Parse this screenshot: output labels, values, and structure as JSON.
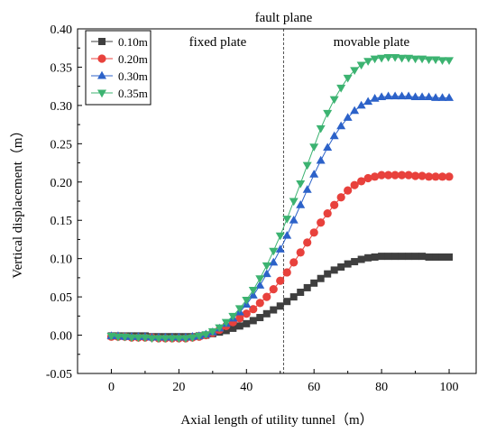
{
  "chart_data": {
    "type": "scatter",
    "xlabel": "Axial length of utility tunnel（m）",
    "ylabel": "Vertical displacement（m）",
    "xlim": [
      -10,
      108
    ],
    "ylim": [
      -0.05,
      0.4
    ],
    "xticks": [
      0,
      20,
      40,
      60,
      80,
      100
    ],
    "yticks": [
      -0.05,
      0.0,
      0.05,
      0.1,
      0.15,
      0.2,
      0.25,
      0.3,
      0.35,
      0.4
    ],
    "xtick_labels": [
      "0",
      "20",
      "40",
      "60",
      "80",
      "100"
    ],
    "ytick_labels": [
      "-0.05",
      "0.00",
      "0.05",
      "0.10",
      "0.15",
      "0.20",
      "0.25",
      "0.30",
      "0.35",
      "0.40"
    ],
    "legend_position": "top-left",
    "annotations": {
      "fault_plane": {
        "text": "fault plane",
        "x": 51
      },
      "left_region": "fixed plate",
      "right_region": "movable plate"
    },
    "series": [
      {
        "name": "0.10m",
        "color": "#3f3f3f",
        "marker": "square",
        "x": [
          0,
          2,
          4,
          6,
          8,
          10,
          12,
          14,
          16,
          18,
          20,
          22,
          24,
          26,
          28,
          30,
          32,
          34,
          36,
          38,
          40,
          42,
          44,
          46,
          48,
          50,
          52,
          54,
          56,
          58,
          60,
          62,
          64,
          66,
          68,
          70,
          72,
          74,
          76,
          78,
          80,
          82,
          84,
          86,
          88,
          90,
          92,
          94,
          96,
          98,
          100
        ],
        "values": [
          -0.001,
          -0.001,
          -0.001,
          -0.001,
          -0.001,
          -0.001,
          -0.002,
          -0.002,
          -0.002,
          -0.002,
          -0.002,
          -0.002,
          -0.002,
          -0.001,
          0.0,
          0.002,
          0.004,
          0.006,
          0.009,
          0.012,
          0.015,
          0.019,
          0.023,
          0.028,
          0.033,
          0.038,
          0.044,
          0.05,
          0.056,
          0.062,
          0.068,
          0.074,
          0.08,
          0.085,
          0.089,
          0.093,
          0.096,
          0.099,
          0.101,
          0.102,
          0.103,
          0.103,
          0.103,
          0.103,
          0.103,
          0.103,
          0.103,
          0.102,
          0.102,
          0.102,
          0.102
        ]
      },
      {
        "name": "0.20m",
        "color": "#e8413c",
        "marker": "circle",
        "x": [
          0,
          2,
          4,
          6,
          8,
          10,
          12,
          14,
          16,
          18,
          20,
          22,
          24,
          26,
          28,
          30,
          32,
          34,
          36,
          38,
          40,
          42,
          44,
          46,
          48,
          50,
          52,
          54,
          56,
          58,
          60,
          62,
          64,
          66,
          68,
          70,
          72,
          74,
          76,
          78,
          80,
          82,
          84,
          86,
          88,
          90,
          92,
          94,
          96,
          98,
          100
        ],
        "values": [
          -0.002,
          -0.002,
          -0.002,
          -0.003,
          -0.003,
          -0.003,
          -0.003,
          -0.004,
          -0.004,
          -0.004,
          -0.004,
          -0.004,
          -0.003,
          -0.002,
          0.0,
          0.003,
          0.007,
          0.012,
          0.017,
          0.022,
          0.028,
          0.034,
          0.042,
          0.05,
          0.06,
          0.071,
          0.082,
          0.095,
          0.108,
          0.121,
          0.134,
          0.147,
          0.159,
          0.17,
          0.18,
          0.189,
          0.196,
          0.201,
          0.205,
          0.207,
          0.209,
          0.209,
          0.209,
          0.209,
          0.209,
          0.208,
          0.208,
          0.207,
          0.207,
          0.207,
          0.207
        ]
      },
      {
        "name": "0.30m",
        "color": "#2c62c9",
        "marker": "triangle-up",
        "x": [
          0,
          2,
          4,
          6,
          8,
          10,
          12,
          14,
          16,
          18,
          20,
          22,
          24,
          26,
          28,
          30,
          32,
          34,
          36,
          38,
          40,
          42,
          44,
          46,
          48,
          50,
          52,
          54,
          56,
          58,
          60,
          62,
          64,
          66,
          68,
          70,
          72,
          74,
          76,
          78,
          80,
          82,
          84,
          86,
          88,
          90,
          92,
          94,
          96,
          98,
          100
        ],
        "values": [
          -0.001,
          -0.001,
          -0.002,
          -0.002,
          -0.002,
          -0.002,
          -0.003,
          -0.003,
          -0.003,
          -0.003,
          -0.003,
          -0.003,
          -0.002,
          -0.001,
          0.001,
          0.004,
          0.009,
          0.015,
          0.022,
          0.03,
          0.04,
          0.052,
          0.065,
          0.08,
          0.095,
          0.112,
          0.13,
          0.15,
          0.17,
          0.19,
          0.21,
          0.228,
          0.245,
          0.26,
          0.273,
          0.284,
          0.293,
          0.3,
          0.305,
          0.309,
          0.311,
          0.312,
          0.312,
          0.312,
          0.312,
          0.311,
          0.311,
          0.311,
          0.31,
          0.31,
          0.31
        ]
      },
      {
        "name": "0.35m",
        "color": "#3cb371",
        "marker": "triangle-down",
        "x": [
          0,
          2,
          4,
          6,
          8,
          10,
          12,
          14,
          16,
          18,
          20,
          22,
          24,
          26,
          28,
          30,
          32,
          34,
          36,
          38,
          40,
          42,
          44,
          46,
          48,
          50,
          52,
          54,
          56,
          58,
          60,
          62,
          64,
          66,
          68,
          70,
          72,
          74,
          76,
          78,
          80,
          82,
          84,
          86,
          88,
          90,
          92,
          94,
          96,
          98,
          100
        ],
        "values": [
          -0.001,
          -0.002,
          -0.002,
          -0.003,
          -0.003,
          -0.003,
          -0.004,
          -0.004,
          -0.004,
          -0.004,
          -0.004,
          -0.004,
          -0.003,
          -0.001,
          0.001,
          0.005,
          0.01,
          0.017,
          0.025,
          0.035,
          0.046,
          0.059,
          0.074,
          0.091,
          0.11,
          0.13,
          0.152,
          0.175,
          0.198,
          0.222,
          0.246,
          0.27,
          0.29,
          0.308,
          0.323,
          0.336,
          0.346,
          0.353,
          0.358,
          0.361,
          0.362,
          0.363,
          0.363,
          0.362,
          0.362,
          0.361,
          0.361,
          0.36,
          0.36,
          0.359,
          0.359
        ]
      }
    ]
  }
}
